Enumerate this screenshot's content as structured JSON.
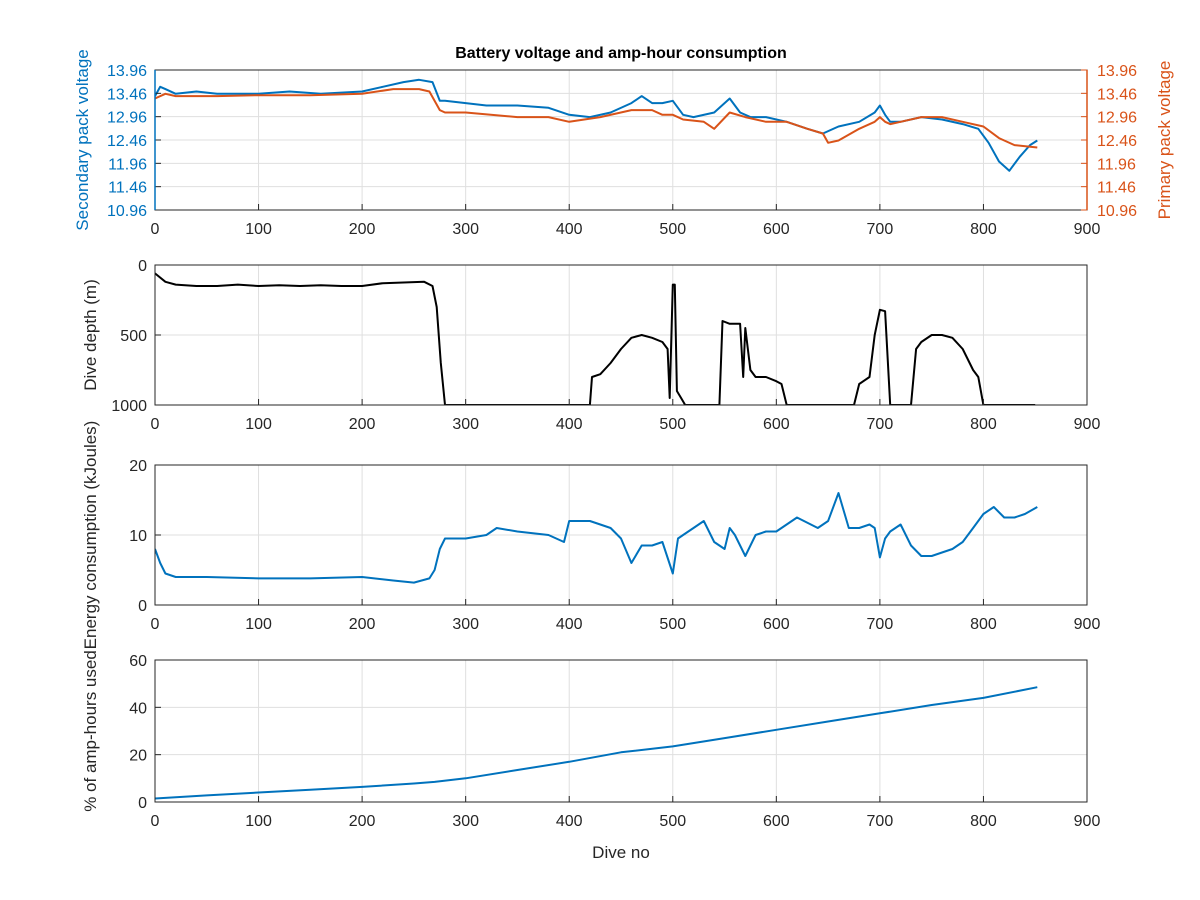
{
  "chart_data": [
    {
      "type": "line",
      "title": "Battery voltage and amp-hour consumption",
      "xlabel": "",
      "ylabel": "Secondary pack voltage",
      "ylabel_right": "Primary pack voltage",
      "xlim": [
        0,
        900
      ],
      "ylim": [
        10.96,
        13.96
      ],
      "x_ticks": [
        "0",
        "100",
        "200",
        "300",
        "400",
        "500",
        "600",
        "700",
        "800",
        "900"
      ],
      "y_ticks": [
        "13.96",
        "13.46",
        "12.96",
        "12.46",
        "11.96",
        "11.46",
        "10.96"
      ],
      "y_ticks_right": [
        "13.96",
        "13.46",
        "12.96",
        "12.46",
        "11.96",
        "11.46",
        "10.96"
      ],
      "grid": true,
      "colors": {
        "left_axis": "#0072BD",
        "right_axis": "#D95319"
      },
      "series": [
        {
          "color": "#0072BD",
          "axis": "left",
          "x": [
            0,
            5,
            10,
            20,
            40,
            60,
            80,
            100,
            130,
            160,
            200,
            220,
            240,
            255,
            268,
            275,
            280,
            300,
            320,
            350,
            380,
            400,
            420,
            440,
            460,
            470,
            480,
            490,
            500,
            510,
            520,
            540,
            555,
            565,
            575,
            590,
            610,
            630,
            645,
            660,
            680,
            695,
            700,
            705,
            710,
            720,
            740,
            760,
            780,
            795,
            805,
            815,
            825,
            835,
            845,
            852
          ],
          "y": [
            13.4,
            13.6,
            13.55,
            13.45,
            13.5,
            13.45,
            13.45,
            13.45,
            13.5,
            13.45,
            13.5,
            13.6,
            13.7,
            13.75,
            13.7,
            13.3,
            13.3,
            13.25,
            13.2,
            13.2,
            13.15,
            13.0,
            12.95,
            13.05,
            13.25,
            13.4,
            13.25,
            13.25,
            13.3,
            13.0,
            12.95,
            13.05,
            13.35,
            13.05,
            12.95,
            12.95,
            12.85,
            12.7,
            12.6,
            12.75,
            12.85,
            13.05,
            13.2,
            13.0,
            12.85,
            12.85,
            12.95,
            12.9,
            12.8,
            12.7,
            12.4,
            12.0,
            11.8,
            12.1,
            12.35,
            12.45
          ],
          "values_approximate": true
        },
        {
          "color": "#D95319",
          "axis": "right",
          "x": [
            0,
            10,
            20,
            60,
            100,
            150,
            200,
            230,
            255,
            265,
            275,
            280,
            300,
            350,
            380,
            400,
            430,
            460,
            480,
            490,
            500,
            510,
            530,
            540,
            555,
            570,
            590,
            610,
            630,
            645,
            650,
            660,
            680,
            695,
            700,
            705,
            710,
            720,
            740,
            760,
            780,
            800,
            815,
            830,
            852
          ],
          "y": [
            13.35,
            13.45,
            13.4,
            13.4,
            13.42,
            13.42,
            13.45,
            13.55,
            13.55,
            13.5,
            13.1,
            13.05,
            13.05,
            12.95,
            12.95,
            12.85,
            12.95,
            13.1,
            13.1,
            13.0,
            13.0,
            12.9,
            12.85,
            12.7,
            13.05,
            12.95,
            12.85,
            12.85,
            12.7,
            12.6,
            12.4,
            12.45,
            12.7,
            12.85,
            12.95,
            12.85,
            12.8,
            12.85,
            12.95,
            12.95,
            12.85,
            12.75,
            12.5,
            12.35,
            12.3
          ],
          "values_approximate": true
        }
      ]
    },
    {
      "type": "line",
      "title": "",
      "xlabel": "",
      "ylabel": "Dive depth (m)",
      "xlim": [
        0,
        900
      ],
      "ylim": [
        0,
        1000
      ],
      "y_reversed": true,
      "x_ticks": [
        "0",
        "100",
        "200",
        "300",
        "400",
        "500",
        "600",
        "700",
        "800",
        "900"
      ],
      "y_ticks": [
        "0",
        "500",
        "1000"
      ],
      "grid": true,
      "series": [
        {
          "color": "#000000",
          "x": [
            0,
            10,
            20,
            40,
            60,
            80,
            100,
            120,
            140,
            160,
            180,
            200,
            220,
            240,
            260,
            268,
            272,
            276,
            280,
            285,
            300,
            350,
            400,
            420,
            422,
            430,
            440,
            450,
            460,
            470,
            480,
            490,
            495,
            497,
            500,
            502,
            504,
            508,
            512,
            520,
            545,
            548,
            555,
            560,
            565,
            568,
            570,
            575,
            580,
            590,
            600,
            605,
            610,
            620,
            660,
            675,
            680,
            690,
            695,
            700,
            705,
            710,
            712,
            730,
            735,
            740,
            750,
            760,
            770,
            780,
            790,
            795,
            800,
            820,
            850
          ],
          "y": [
            60,
            120,
            140,
            150,
            150,
            140,
            150,
            145,
            150,
            145,
            150,
            150,
            130,
            125,
            120,
            150,
            300,
            700,
            1000,
            1000,
            1000,
            1000,
            1000,
            1000,
            800,
            780,
            700,
            600,
            520,
            500,
            520,
            550,
            600,
            950,
            140,
            140,
            900,
            950,
            1000,
            1000,
            1000,
            400,
            420,
            420,
            420,
            800,
            450,
            750,
            800,
            800,
            830,
            850,
            1000,
            1000,
            1000,
            1000,
            850,
            800,
            500,
            320,
            330,
            1000,
            1000,
            1000,
            600,
            550,
            500,
            500,
            520,
            600,
            750,
            800,
            1000,
            1000,
            1000
          ],
          "values_approximate": true
        }
      ]
    },
    {
      "type": "line",
      "title": "",
      "xlabel": "",
      "ylabel": "Energy consumption (kJoules)",
      "xlim": [
        0,
        900
      ],
      "ylim": [
        0,
        20
      ],
      "x_ticks": [
        "0",
        "100",
        "200",
        "300",
        "400",
        "500",
        "600",
        "700",
        "800",
        "900"
      ],
      "y_ticks": [
        "20",
        "10",
        "0"
      ],
      "grid": true,
      "series": [
        {
          "color": "#0072BD",
          "x": [
            0,
            5,
            10,
            20,
            50,
            100,
            150,
            200,
            230,
            250,
            265,
            270,
            275,
            280,
            290,
            300,
            320,
            330,
            350,
            380,
            395,
            400,
            420,
            430,
            440,
            450,
            460,
            470,
            480,
            490,
            500,
            505,
            510,
            520,
            530,
            540,
            550,
            555,
            560,
            570,
            580,
            590,
            600,
            620,
            640,
            650,
            660,
            670,
            680,
            690,
            695,
            700,
            705,
            710,
            720,
            730,
            740,
            750,
            760,
            770,
            780,
            790,
            800,
            810,
            820,
            830,
            840,
            852
          ],
          "y": [
            8,
            6,
            4.5,
            4,
            4,
            3.8,
            3.8,
            4,
            3.5,
            3.2,
            3.8,
            5,
            8,
            9.5,
            9.5,
            9.5,
            10,
            11,
            10.5,
            10,
            9,
            12,
            12,
            11.5,
            11,
            9.5,
            6,
            8.5,
            8.5,
            9,
            4.5,
            9.5,
            10,
            11,
            12,
            9,
            8,
            11,
            10,
            7,
            10,
            10.5,
            10.5,
            12.5,
            11,
            12,
            16,
            11,
            11,
            11.5,
            11,
            6.8,
            9.5,
            10.5,
            11.5,
            8.5,
            7,
            7,
            7.5,
            8,
            9,
            11,
            13,
            14,
            12.5,
            12.5,
            13,
            14
          ],
          "values_approximate": true
        }
      ]
    },
    {
      "type": "line",
      "title": "",
      "xlabel": "Dive no",
      "ylabel": "% of amp-hours used",
      "xlim": [
        0,
        900
      ],
      "ylim": [
        0,
        60
      ],
      "x_ticks": [
        "0",
        "100",
        "200",
        "300",
        "400",
        "500",
        "600",
        "700",
        "800",
        "900"
      ],
      "y_ticks": [
        "60",
        "40",
        "20",
        "0"
      ],
      "grid": true,
      "series": [
        {
          "color": "#0072BD",
          "x": [
            0,
            50,
            100,
            150,
            200,
            250,
            270,
            300,
            350,
            400,
            450,
            500,
            550,
            600,
            650,
            700,
            750,
            800,
            852
          ],
          "y": [
            1.5,
            2.8,
            4,
            5.2,
            6.4,
            7.8,
            8.5,
            10,
            13.5,
            17,
            21,
            23.5,
            27,
            30.5,
            34,
            37.5,
            41,
            44,
            48.5
          ],
          "values_approximate": true
        }
      ]
    }
  ]
}
